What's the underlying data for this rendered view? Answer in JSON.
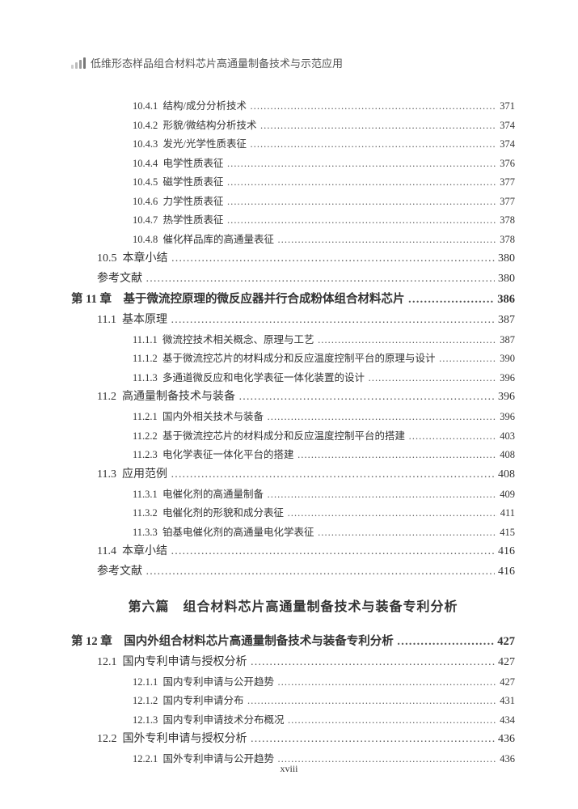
{
  "header": {
    "title": "低维形态样品组合材料芯片高通量制备技术与示范应用"
  },
  "footer": {
    "page": "xviii"
  },
  "toc": [
    {
      "lvl": "sub",
      "num": "10.4.1",
      "label": "结构/成分分析技术",
      "page": "371"
    },
    {
      "lvl": "sub",
      "num": "10.4.2",
      "label": "形貌/微结构分析技术",
      "page": "374"
    },
    {
      "lvl": "sub",
      "num": "10.4.3",
      "label": "发光/光学性质表征",
      "page": "374"
    },
    {
      "lvl": "sub",
      "num": "10.4.4",
      "label": "电学性质表征",
      "page": "376"
    },
    {
      "lvl": "sub",
      "num": "10.4.5",
      "label": "磁学性质表征",
      "page": "377"
    },
    {
      "lvl": "sub",
      "num": "10.4.6",
      "label": "力学性质表征",
      "page": "377"
    },
    {
      "lvl": "sub",
      "num": "10.4.7",
      "label": "热学性质表征",
      "page": "378"
    },
    {
      "lvl": "sub",
      "num": "10.4.8",
      "label": "催化样品库的高通量表征",
      "page": "378"
    },
    {
      "lvl": "sec",
      "num": "10.5",
      "label": "本章小结",
      "page": "380"
    },
    {
      "lvl": "ref",
      "num": "",
      "label": "参考文献",
      "page": "380"
    },
    {
      "lvl": "chap",
      "num": "第 11 章",
      "label": "基于微流控原理的微反应器并行合成粉体组合材料芯片",
      "page": "386"
    },
    {
      "lvl": "sec",
      "num": "11.1",
      "label": "基本原理",
      "page": "387"
    },
    {
      "lvl": "sub",
      "num": "11.1.1",
      "label": "微流控技术相关概念、原理与工艺",
      "page": "387"
    },
    {
      "lvl": "sub",
      "num": "11.1.2",
      "label": "基于微流控芯片的材料成分和反应温度控制平台的原理与设计",
      "page": "390"
    },
    {
      "lvl": "sub",
      "num": "11.1.3",
      "label": "多通道微反应和电化学表征一体化装置的设计",
      "page": "396"
    },
    {
      "lvl": "sec",
      "num": "11.2",
      "label": "高通量制备技术与装备",
      "page": "396"
    },
    {
      "lvl": "sub",
      "num": "11.2.1",
      "label": "国内外相关技术与装备",
      "page": "396"
    },
    {
      "lvl": "sub",
      "num": "11.2.2",
      "label": "基于微流控芯片的材料成分和反应温度控制平台的搭建",
      "page": "403"
    },
    {
      "lvl": "sub",
      "num": "11.2.3",
      "label": "电化学表征一体化平台的搭建",
      "page": "408"
    },
    {
      "lvl": "sec",
      "num": "11.3",
      "label": "应用范例",
      "page": "408"
    },
    {
      "lvl": "sub",
      "num": "11.3.1",
      "label": "电催化剂的高通量制备",
      "page": "409"
    },
    {
      "lvl": "sub",
      "num": "11.3.2",
      "label": "电催化剂的形貌和成分表征",
      "page": "411"
    },
    {
      "lvl": "sub",
      "num": "11.3.3",
      "label": "铂基电催化剂的高通量电化学表征",
      "page": "415"
    },
    {
      "lvl": "sec",
      "num": "11.4",
      "label": "本章小结",
      "page": "416"
    },
    {
      "lvl": "ref",
      "num": "",
      "label": "参考文献",
      "page": "416"
    },
    {
      "lvl": "part",
      "label": "第六篇　组合材料芯片高通量制备技术与装备专利分析"
    },
    {
      "lvl": "chap",
      "num": "第 12 章",
      "label": "国内外组合材料芯片高通量制备技术与装备专利分析",
      "page": "427"
    },
    {
      "lvl": "sec",
      "num": "12.1",
      "label": "国内专利申请与授权分析",
      "page": "427"
    },
    {
      "lvl": "sub",
      "num": "12.1.1",
      "label": "国内专利申请与公开趋势",
      "page": "427"
    },
    {
      "lvl": "sub",
      "num": "12.1.2",
      "label": "国内专利申请分布",
      "page": "431"
    },
    {
      "lvl": "sub",
      "num": "12.1.3",
      "label": "国内专利申请技术分布概况",
      "page": "434"
    },
    {
      "lvl": "sec",
      "num": "12.2",
      "label": "国外专利申请与授权分析",
      "page": "436"
    },
    {
      "lvl": "sub",
      "num": "12.2.1",
      "label": "国外专利申请与公开趋势",
      "page": "436"
    }
  ],
  "leader_char": "…"
}
